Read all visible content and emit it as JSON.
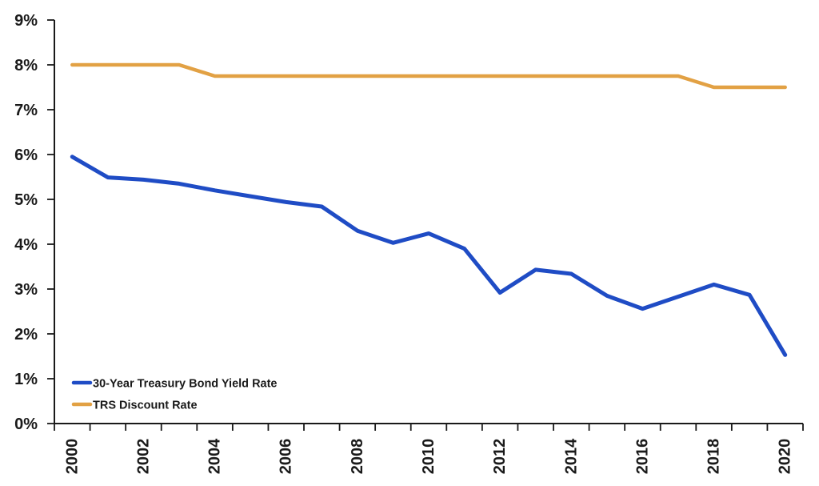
{
  "chart_data": {
    "type": "line",
    "title": "",
    "xlabel": "",
    "ylabel": "",
    "x": [
      2000,
      2001,
      2002,
      2003,
      2004,
      2005,
      2006,
      2007,
      2008,
      2009,
      2010,
      2011,
      2012,
      2013,
      2014,
      2015,
      2016,
      2017,
      2018,
      2019,
      2020
    ],
    "x_tick_labels": [
      "2000",
      "2002",
      "2004",
      "2006",
      "2008",
      "2010",
      "2012",
      "2014",
      "2016",
      "2018",
      "2020"
    ],
    "ylim": [
      0,
      9
    ],
    "y_tick_labels": [
      "0%",
      "1%",
      "2%",
      "3%",
      "4%",
      "5%",
      "6%",
      "7%",
      "8%",
      "9%"
    ],
    "grid": false,
    "legend_position": "inside-bottom-left",
    "axis_color": "#1a1a1a",
    "series": [
      {
        "name": "30-Year Treasury Bond Yield Rate",
        "color": "#1f4cc5",
        "values": [
          5.95,
          5.49,
          5.44,
          5.35,
          5.2,
          5.07,
          4.94,
          4.84,
          4.3,
          4.03,
          4.24,
          3.9,
          2.92,
          3.43,
          3.34,
          2.85,
          2.56,
          2.83,
          3.1,
          2.87,
          1.53
        ]
      },
      {
        "name": "TRS Discount Rate",
        "color": "#e2a144",
        "values": [
          8.0,
          8.0,
          8.0,
          8.0,
          7.75,
          7.75,
          7.75,
          7.75,
          7.75,
          7.75,
          7.75,
          7.75,
          7.75,
          7.75,
          7.75,
          7.75,
          7.75,
          7.75,
          7.5,
          7.5,
          7.5
        ]
      }
    ]
  }
}
